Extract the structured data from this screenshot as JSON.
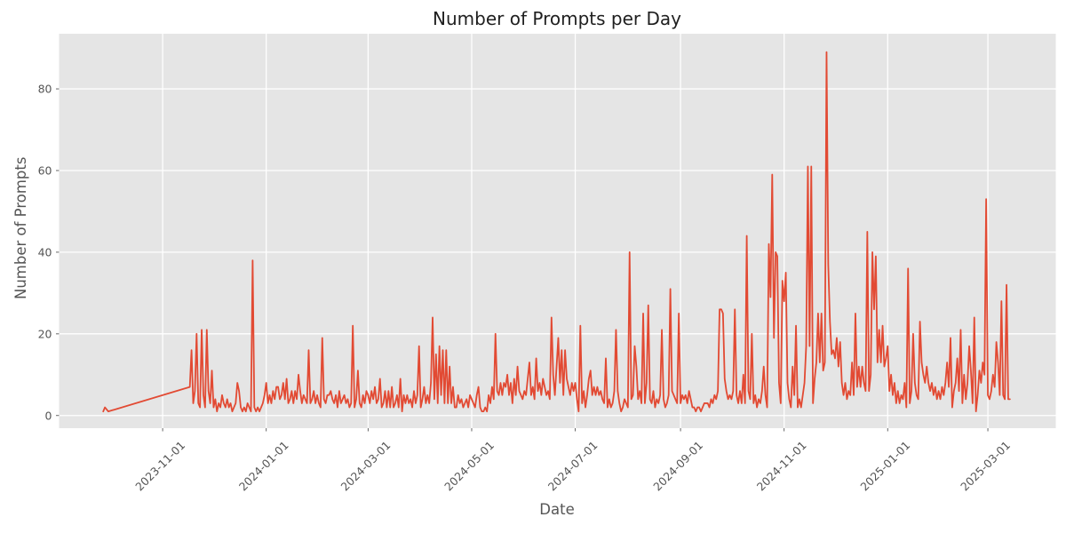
{
  "chart_data": {
    "type": "line",
    "title": "Number of Prompts per Day",
    "xlabel": "Date",
    "ylabel": "Number of Prompts",
    "line_color": "#E24A33",
    "plot_bg_color": "#E5E5E5",
    "grid_color": "#FFFFFF",
    "tick_color": "#555555",
    "grid": true,
    "legend": false,
    "ylim": [
      -3.1,
      93.5
    ],
    "yticks": [
      0,
      20,
      40,
      60,
      80
    ],
    "xlim": [
      "2023-09-01",
      "2025-04-10"
    ],
    "xticks": [
      "2023-11-01",
      "2024-01-01",
      "2024-03-01",
      "2024-05-01",
      "2024-07-01",
      "2024-09-01",
      "2024-11-01",
      "2025-01-01",
      "2025-03-01"
    ],
    "series": {
      "early_points": [
        [
          "2023-09-27",
          1
        ],
        [
          "2023-09-28",
          2
        ],
        [
          "2023-09-30",
          1
        ]
      ],
      "daily_start": "2023-11-17",
      "daily_values": [
        7,
        16,
        3,
        6,
        20,
        3,
        2,
        21,
        5,
        2,
        21,
        6,
        3,
        11,
        2,
        4,
        1,
        3,
        2,
        5,
        3,
        2,
        4,
        2,
        3,
        1,
        2,
        3,
        8,
        6,
        2,
        1,
        2,
        1,
        3,
        2,
        1,
        38,
        2,
        1,
        2,
        1,
        2,
        3,
        5,
        8,
        3,
        5,
        3,
        6,
        4,
        7,
        7,
        4,
        5,
        8,
        4,
        9,
        3,
        4,
        6,
        3,
        6,
        4,
        10,
        6,
        3,
        5,
        4,
        3,
        16,
        3,
        4,
        6,
        3,
        5,
        3,
        2,
        19,
        4,
        3,
        5,
        5,
        6,
        4,
        3,
        5,
        2,
        6,
        3,
        4,
        5,
        3,
        4,
        2,
        3,
        22,
        2,
        4,
        11,
        3,
        2,
        5,
        3,
        6,
        5,
        3,
        6,
        4,
        7,
        3,
        4,
        9,
        2,
        3,
        6,
        2,
        6,
        2,
        7,
        2,
        3,
        5,
        2,
        9,
        1,
        5,
        3,
        5,
        3,
        4,
        2,
        6,
        3,
        5,
        17,
        2,
        4,
        7,
        3,
        5,
        3,
        8,
        24,
        4,
        15,
        3,
        17,
        5,
        16,
        3,
        16,
        3,
        12,
        3,
        7,
        2,
        2,
        5,
        3,
        4,
        2,
        3,
        4,
        2,
        5,
        4,
        3,
        2,
        5,
        7,
        2,
        1,
        1,
        2,
        1,
        5,
        3,
        7,
        4,
        20,
        6,
        5,
        8,
        5,
        8,
        7,
        10,
        5,
        8,
        3,
        9,
        5,
        12,
        6,
        5,
        4,
        6,
        5,
        9,
        13,
        5,
        7,
        4,
        14,
        6,
        8,
        5,
        9,
        7,
        5,
        6,
        4,
        24,
        10,
        5,
        12,
        19,
        8,
        16,
        5,
        16,
        9,
        7,
        5,
        8,
        6,
        8,
        4,
        1,
        22,
        3,
        6,
        2,
        5,
        9,
        11,
        5,
        7,
        5,
        7,
        5,
        6,
        4,
        3,
        14,
        2,
        4,
        2,
        3,
        6,
        21,
        6,
        3,
        1,
        2,
        4,
        3,
        2,
        40,
        4,
        5,
        17,
        12,
        4,
        6,
        3,
        25,
        3,
        8,
        27,
        4,
        3,
        6,
        2,
        4,
        3,
        5,
        21,
        4,
        2,
        3,
        5,
        31,
        6,
        5,
        4,
        3,
        25,
        3,
        5,
        4,
        5,
        3,
        6,
        4,
        2,
        2,
        1,
        2,
        2,
        1,
        2,
        3,
        3,
        3,
        2,
        4,
        3,
        5,
        4,
        6,
        26,
        26,
        25,
        9,
        6,
        4,
        5,
        4,
        6,
        26,
        5,
        3,
        6,
        3,
        10,
        3,
        44,
        6,
        4,
        20,
        3,
        5,
        2,
        4,
        3,
        6,
        12,
        5,
        2,
        42,
        29,
        59,
        19,
        40,
        39,
        8,
        3,
        33,
        28,
        35,
        8,
        4,
        2,
        12,
        5,
        22,
        2,
        4,
        2,
        5,
        8,
        17,
        61,
        17,
        61,
        3,
        9,
        13,
        25,
        13,
        25,
        11,
        13,
        89,
        37,
        23,
        15,
        16,
        14,
        19,
        12,
        18,
        8,
        5,
        8,
        4,
        6,
        5,
        13,
        5,
        25,
        7,
        12,
        7,
        12,
        8,
        6,
        45,
        6,
        10,
        40,
        26,
        39,
        13,
        21,
        13,
        22,
        12,
        14,
        17,
        6,
        10,
        5,
        8,
        3,
        6,
        3,
        5,
        4,
        8,
        2,
        36,
        3,
        6,
        20,
        8,
        5,
        4,
        23,
        13,
        10,
        8,
        12,
        8,
        6,
        8,
        5,
        7,
        4,
        6,
        4,
        7,
        5,
        8,
        13,
        7,
        19,
        2,
        6,
        8,
        14,
        6,
        21,
        3,
        10,
        4,
        8,
        17,
        11,
        3,
        24,
        1,
        5,
        11,
        8,
        13,
        10,
        53,
        5,
        4,
        6,
        10,
        7,
        18,
        13,
        5,
        28,
        5,
        4,
        32,
        4,
        4
      ]
    }
  }
}
